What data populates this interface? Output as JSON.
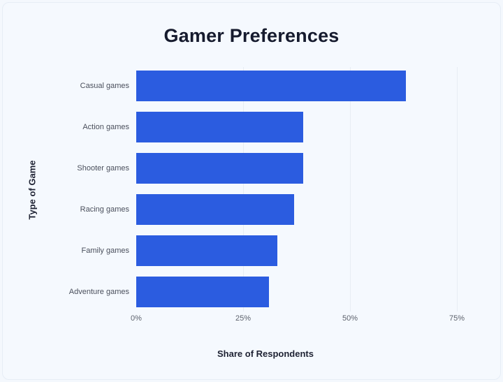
{
  "chart_data": {
    "type": "bar",
    "orientation": "horizontal",
    "title": "Gamer Preferences",
    "xlabel": "Share of Respondents",
    "ylabel": "Type of Game",
    "categories": [
      "Casual games",
      "Action games",
      "Shooter games",
      "Racing games",
      "Family games",
      "Adventure games"
    ],
    "values": [
      63,
      39,
      39,
      37,
      33,
      31
    ],
    "unit": "%",
    "xlim": [
      0,
      75
    ],
    "xticks": [
      "0%",
      "25%",
      "50%",
      "75%"
    ],
    "grid": "vertical",
    "legend": null,
    "bar_color": "#2b5ce0"
  }
}
